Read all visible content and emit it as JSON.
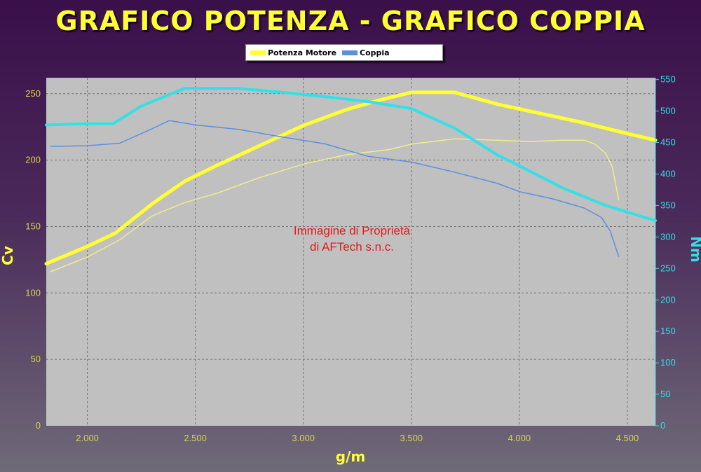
{
  "chart_data": {
    "type": "line",
    "title": "GRAFICO POTENZA - GRAFICO COPPIA",
    "xlabel": "g/m",
    "ylabel_left": "Cv",
    "ylabel_right": "Nm",
    "xlim": [
      1810,
      4630
    ],
    "ylim_left": [
      0,
      262
    ],
    "ylim_right": [
      0,
      553
    ],
    "x_ticks": [
      2000,
      2500,
      3000,
      3500,
      4000,
      4500
    ],
    "x_tick_labels": [
      "2.000",
      "2.500",
      "3.000",
      "3.500",
      "4.000",
      "4.500"
    ],
    "y_ticks_left": [
      0,
      50,
      100,
      150,
      200,
      250
    ],
    "y_ticks_right": [
      0,
      50,
      100,
      150,
      200,
      250,
      300,
      350,
      400,
      450,
      500,
      550
    ],
    "grid": true,
    "legend": [
      {
        "label": "Potenza Motore",
        "color": "#ffff33"
      },
      {
        "label": "Coppia",
        "color": "#5b8fe0"
      }
    ],
    "annotation": [
      "Immagine di Proprietà",
      "di AFTech s.n.c."
    ],
    "series": [
      {
        "name": "Potenza Motore",
        "axis": "left",
        "color": "#ffff33",
        "width": 5,
        "x": [
          1810,
          2000,
          2130,
          2300,
          2450,
          2600,
          2800,
          3000,
          3200,
          3350,
          3500,
          3700,
          3900,
          4100,
          4300,
          4500,
          4630
        ],
        "y": [
          122,
          135,
          145,
          167,
          184,
          196,
          211,
          226,
          238,
          245,
          251,
          251,
          242,
          235,
          228,
          220,
          215
        ]
      },
      {
        "axis": "left",
        "color": "#eeee88",
        "width": 1.5,
        "x": [
          1830,
          2000,
          2150,
          2300,
          2450,
          2600,
          2800,
          3000,
          3200,
          3400,
          3500,
          3700,
          3900,
          4050,
          4200,
          4300,
          4350,
          4400,
          4430,
          4460
        ],
        "y": [
          116,
          127,
          140,
          158,
          168,
          175,
          187,
          197,
          204,
          208,
          212,
          216,
          215,
          214,
          215,
          215,
          212,
          205,
          195,
          170
        ]
      },
      {
        "name": "Coppia",
        "axis": "right",
        "color": "#5b8fe0",
        "width": 1.5,
        "x": [
          1830,
          2000,
          2150,
          2300,
          2380,
          2500,
          2700,
          2900,
          3100,
          3300,
          3500,
          3700,
          3900,
          4000,
          4150,
          4300,
          4380,
          4420,
          4460
        ],
        "y": [
          444,
          445,
          449,
          472,
          485,
          478,
          471,
          459,
          448,
          428,
          419,
          403,
          385,
          372,
          361,
          346,
          331,
          310,
          269
        ]
      },
      {
        "axis": "right",
        "color": "#33e0e6",
        "width": 4,
        "x": [
          1810,
          2000,
          2120,
          2250,
          2450,
          2700,
          2900,
          3100,
          3300,
          3500,
          3700,
          3900,
          4000,
          4200,
          4400,
          4630
        ],
        "y": [
          478,
          480,
          480,
          508,
          536,
          536,
          530,
          523,
          515,
          504,
          473,
          430,
          413,
          378,
          350,
          326
        ]
      }
    ]
  }
}
